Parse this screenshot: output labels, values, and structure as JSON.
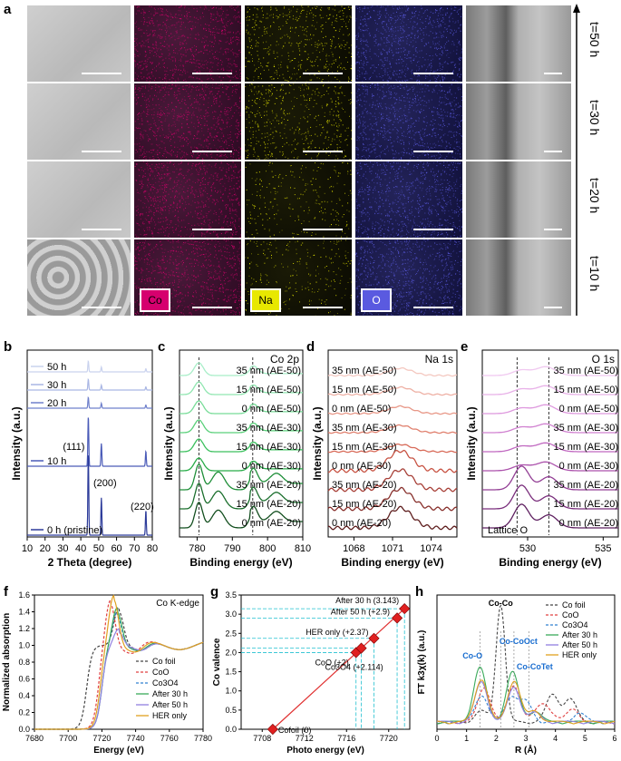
{
  "panel_labels": [
    "a",
    "b",
    "c",
    "d",
    "e",
    "f",
    "g",
    "h"
  ],
  "panel_a": {
    "rows": [
      "t=50 h",
      "t=30 h",
      "t=20 h",
      "t=10 h"
    ],
    "elements": [
      {
        "label": "Co",
        "color": "#d6006e"
      },
      {
        "label": "Na",
        "color": "#e8e800"
      },
      {
        "label": "O",
        "color": "#5a5ae0"
      }
    ]
  },
  "chart_data": [
    {
      "panel": "b",
      "type": "line",
      "xlabel": "2 Theta (degree)",
      "ylabel": "Intensity (a.u.)",
      "xlim": [
        10,
        80
      ],
      "xticks": [
        10,
        20,
        30,
        40,
        50,
        60,
        70,
        80
      ],
      "series": [
        {
          "name": "50 h",
          "color": "#c9d2ee"
        },
        {
          "name": "30 h",
          "color": "#a9b6e4"
        },
        {
          "name": "20 h",
          "color": "#6f80cc"
        },
        {
          "name": "10 h",
          "color": "#4a5bb8"
        },
        {
          "name": "0 h (pristine)",
          "color": "#2c3b9a"
        }
      ],
      "peaks": [
        {
          "x": 44.2,
          "label": "(111)"
        },
        {
          "x": 51.5,
          "label": "(200)"
        },
        {
          "x": 76.4,
          "label": "(220)"
        }
      ]
    },
    {
      "panel": "c",
      "type": "line",
      "title": "Co 2p",
      "xlabel": "Binding energy (eV)",
      "ylabel": "Intensity (a.u.)",
      "xlim": [
        775,
        810
      ],
      "xticks": [
        780,
        790,
        800,
        810
      ],
      "dashed_x": [
        780.5,
        795.8
      ],
      "series": [
        {
          "name": "35 nm (AE-50)",
          "color": "#a8eec8"
        },
        {
          "name": "15 nm (AE-50)",
          "color": "#90e6b0"
        },
        {
          "name": "0 nm (AE-50)",
          "color": "#78dc98"
        },
        {
          "name": "35 nm (AE-30)",
          "color": "#5ad07a"
        },
        {
          "name": "15 nm (AE-30)",
          "color": "#3cc05e"
        },
        {
          "name": "0 nm (AE-30)",
          "color": "#28ac48"
        },
        {
          "name": "35 nm (AE-20)",
          "color": "#1e8e38"
        },
        {
          "name": "15 nm (AE-20)",
          "color": "#1a6e2c"
        },
        {
          "name": "0 nm (AE-20)",
          "color": "#124e1e"
        }
      ]
    },
    {
      "panel": "d",
      "type": "line",
      "title": "Na 1s",
      "xlabel": "Binding energy (eV)",
      "ylabel": "Intensity (a.u.)",
      "xlim": [
        1066,
        1076
      ],
      "xticks": [
        1068,
        1071,
        1074
      ],
      "series": [
        {
          "name": "35 nm (AE-50)",
          "color": "#f4c8c0"
        },
        {
          "name": "15 nm (AE-50)",
          "color": "#eeb0a4"
        },
        {
          "name": "0 nm (AE-50)",
          "color": "#e89888"
        },
        {
          "name": "35 nm (AE-30)",
          "color": "#e0806e"
        },
        {
          "name": "15 nm (AE-30)",
          "color": "#d86a58"
        },
        {
          "name": "0 nm (AE-30)",
          "color": "#c85444"
        },
        {
          "name": "35 nm (AE-20)",
          "color": "#a84038"
        },
        {
          "name": "15 nm (AE-20)",
          "color": "#88302c"
        },
        {
          "name": "0 nm (AE-20)",
          "color": "#5e1e1e"
        }
      ]
    },
    {
      "panel": "e",
      "type": "line",
      "title": "O 1s",
      "xlabel": "Binding energy (eV)",
      "ylabel": "Intensity (a.u.)",
      "xlim": [
        527,
        536
      ],
      "xticks": [
        530,
        535
      ],
      "dashed_x": [
        529.3,
        531.4
      ],
      "annotation": "Lattice O",
      "series": [
        {
          "name": "35 nm (AE-50)",
          "color": "#f0c8f0"
        },
        {
          "name": "15 nm (AE-50)",
          "color": "#e8b0e8"
        },
        {
          "name": "0 nm (AE-50)",
          "color": "#de98de"
        },
        {
          "name": "35 nm (AE-30)",
          "color": "#d080d0"
        },
        {
          "name": "15 nm (AE-30)",
          "color": "#c068c0"
        },
        {
          "name": "0 nm (AE-30)",
          "color": "#ac52ac"
        },
        {
          "name": "35 nm (AE-20)",
          "color": "#923e94"
        },
        {
          "name": "15 nm (AE-20)",
          "color": "#7a2e7c"
        },
        {
          "name": "0 nm (AE-20)",
          "color": "#5e2060"
        }
      ]
    },
    {
      "panel": "f",
      "type": "line",
      "title": "Co K-edge",
      "xlabel": "Energy (eV)",
      "ylabel": "Normalized absorption",
      "xlim": [
        7680,
        7780
      ],
      "ylim": [
        0,
        1.6
      ],
      "xticks": [
        7680,
        7700,
        7720,
        7740,
        7760,
        7780
      ],
      "yticks": [
        "0.0",
        "0.2",
        "0.4",
        "0.6",
        "0.8",
        "1.0",
        "1.2",
        "1.4",
        "1.6"
      ],
      "series": [
        {
          "name": "Co foil",
          "color": "#444444",
          "dash": "3,2"
        },
        {
          "name": "CoO",
          "color": "#e04040",
          "dash": "3,2"
        },
        {
          "name": "Co3O4",
          "color": "#3080d0",
          "dash": "3,2"
        },
        {
          "name": "After 30 h",
          "color": "#3aaa5a",
          "dash": ""
        },
        {
          "name": "After 50 h",
          "color": "#9080e0",
          "dash": ""
        },
        {
          "name": "HER only",
          "color": "#e0a020",
          "dash": ""
        }
      ]
    },
    {
      "panel": "g",
      "type": "scatter",
      "xlabel": "Photo energy (eV)",
      "ylabel": "Co valence",
      "xlim": [
        7706,
        7722
      ],
      "ylim": [
        0,
        3.5
      ],
      "xticks": [
        7708,
        7712,
        7716,
        7720
      ],
      "yticks": [
        "0.0",
        "0.5",
        "1.0",
        "1.5",
        "2.0",
        "2.5",
        "3.0",
        "3.5"
      ],
      "points": [
        {
          "x": 7709.0,
          "y": 0.0,
          "label": "Cofoil (0)"
        },
        {
          "x": 7716.9,
          "y": 2.0,
          "label": "CoO (+2)"
        },
        {
          "x": 7717.4,
          "y": 2.114,
          "label": "Co3O4 (+2.114)"
        },
        {
          "x": 7718.6,
          "y": 2.37,
          "label": "HER only (+2.37)"
        },
        {
          "x": 7720.8,
          "y": 2.9,
          "label": "After 50 h (+2.9)"
        },
        {
          "x": 7721.5,
          "y": 3.143,
          "label": "After 30 h (3.143)"
        }
      ]
    },
    {
      "panel": "h",
      "type": "line",
      "xlabel": "R (Å)",
      "ylabel": "FT k3χ(k) (a.u.)",
      "xlim": [
        0,
        6
      ],
      "xticks": [
        0,
        1,
        2,
        3,
        4,
        5,
        6
      ],
      "annotations": [
        "Co-Co",
        "Co-O",
        "Co-CoOct",
        "Co-CoTet"
      ],
      "series": [
        {
          "name": "Co foil",
          "color": "#444444",
          "dash": "3,2"
        },
        {
          "name": "CoO",
          "color": "#e04040",
          "dash": "3,2"
        },
        {
          "name": "Co3O4",
          "color": "#3080d0",
          "dash": "3,2"
        },
        {
          "name": "After 30 h",
          "color": "#3aaa5a",
          "dash": ""
        },
        {
          "name": "After 50 h",
          "color": "#9080e0",
          "dash": ""
        },
        {
          "name": "HER only",
          "color": "#e0a020",
          "dash": ""
        }
      ]
    }
  ]
}
